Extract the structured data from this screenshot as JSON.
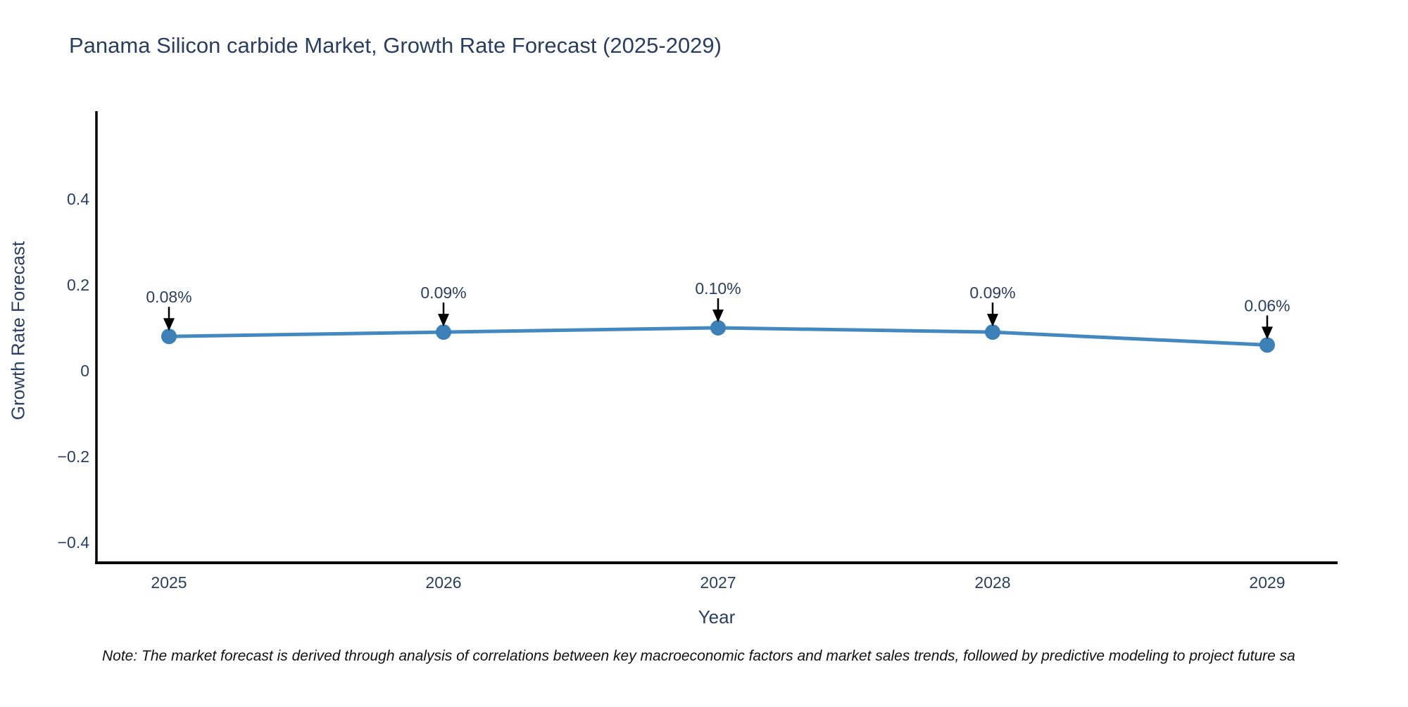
{
  "title": "Panama Silicon carbide Market, Growth Rate Forecast (2025-2029)",
  "note": "Note: The market forecast is derived through analysis of correlations between key macroeconomic factors and market sales trends, followed by predictive modeling to project future sa",
  "colors": {
    "background": "#ffffff",
    "line": "#4389c0",
    "marker": "#3d80b8",
    "axis_spine": "#000000",
    "text": "#2a3f5f",
    "annotation_arrow": "#000000",
    "note_text": "#111111"
  },
  "chart_data": {
    "type": "line",
    "title": "Panama Silicon carbide Market, Growth Rate Forecast (2025-2029)",
    "xlabel": "Year",
    "ylabel": "Growth Rate Forecast",
    "categories": [
      "2025",
      "2026",
      "2027",
      "2028",
      "2029"
    ],
    "values": [
      0.08,
      0.09,
      0.1,
      0.09,
      0.06
    ],
    "point_labels": [
      "0.08%",
      "0.09%",
      "0.10%",
      "0.09%",
      "0.06%"
    ],
    "yticks": [
      0.4,
      0.2,
      0,
      -0.2,
      -0.4
    ],
    "ytick_labels": [
      "0.4",
      "0.2",
      "0",
      "−0.2",
      "−0.4"
    ],
    "ylim": [
      -0.45,
      0.6
    ],
    "grid": false,
    "legend": "none",
    "annotations_have_arrows": true
  }
}
